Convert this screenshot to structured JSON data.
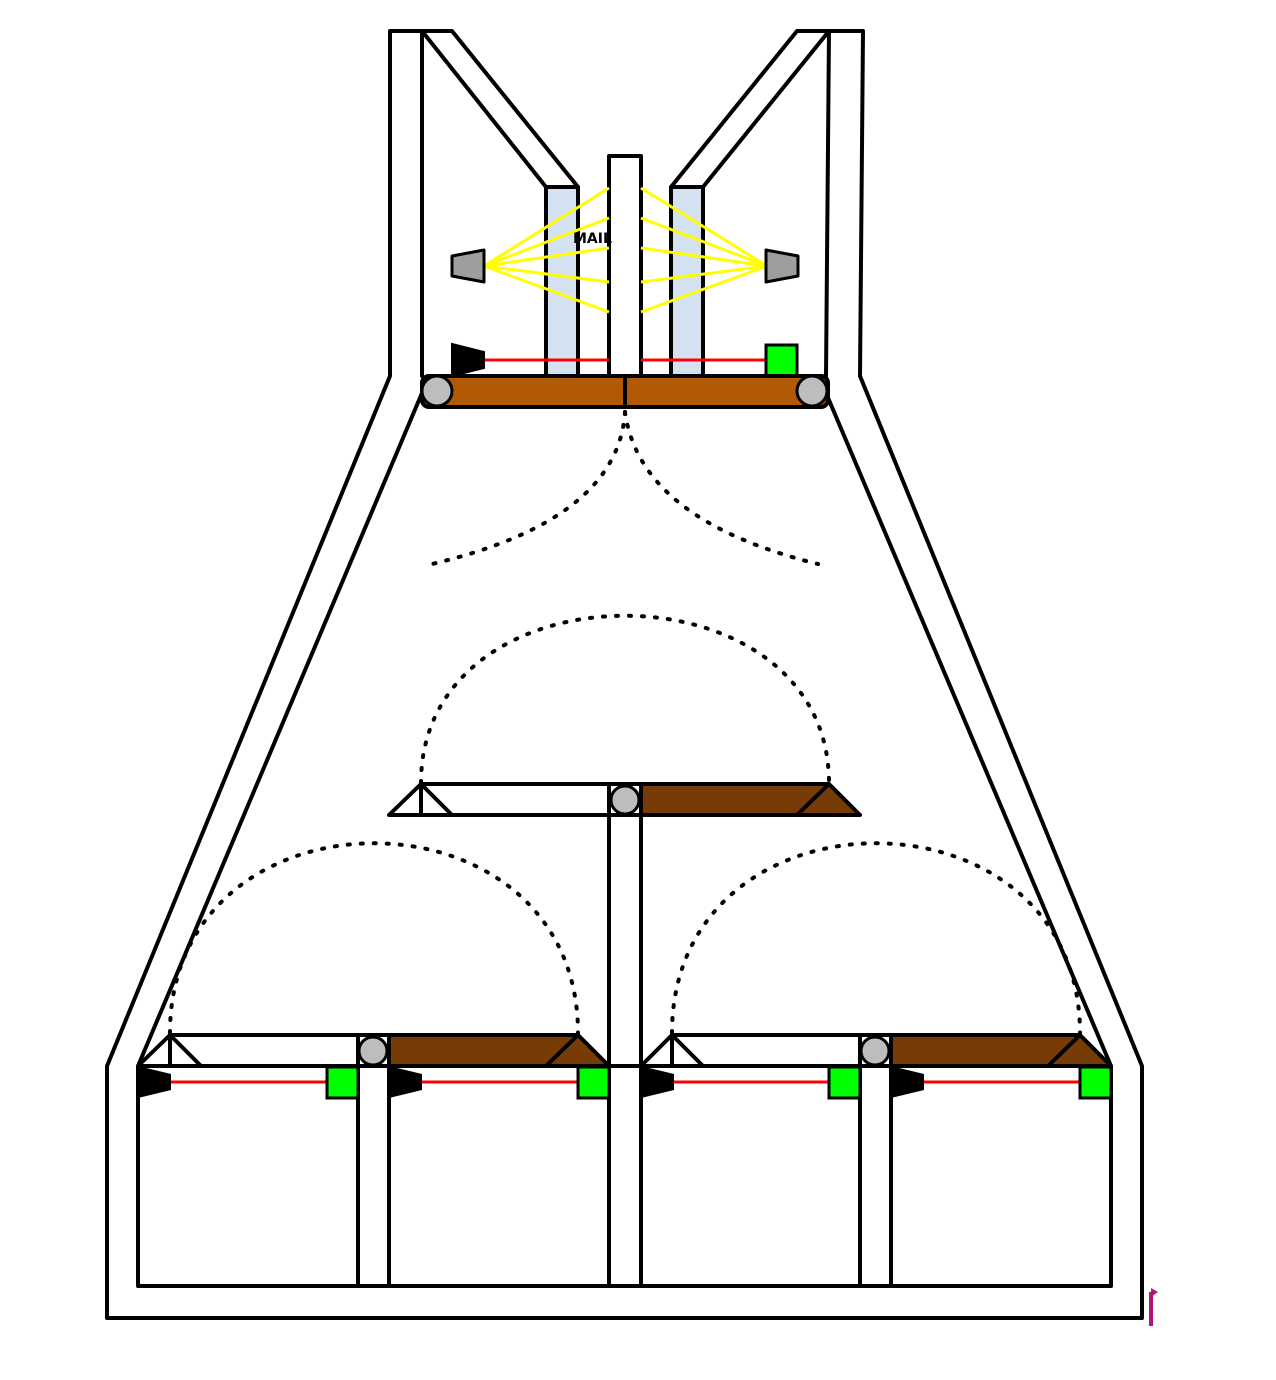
{
  "labels": {
    "mail": "MAIL"
  },
  "colors": {
    "wall_outline": "#000000",
    "wall_fill": "#ffffff",
    "conveyor_belt": "#b05a06",
    "diverter_flap": "#773c05",
    "roller": "#bdbdbd",
    "scanner_glass": "#d3e1f1",
    "scanner_unit": "#9e9e9e",
    "scan_beam": "#ffff00",
    "laser_beam": "#ff0000",
    "light_emitter": "#000000",
    "light_receiver": "#00ff00",
    "marker": "#b0147a"
  },
  "icons": {
    "roller": "roller-icon",
    "emitter": "laser-emitter-icon",
    "receiver": "laser-receiver-icon",
    "scanner": "barcode-scanner-icon",
    "marker": "pin-marker-icon"
  }
}
